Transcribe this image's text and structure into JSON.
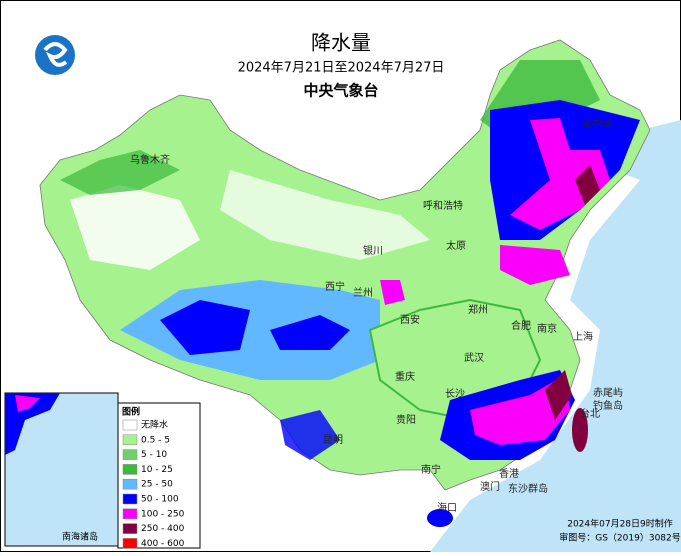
{
  "header": {
    "title": "降水量",
    "period": "2024年7月21日至2024年7月27日",
    "agency": "中央气象台"
  },
  "legend": {
    "title": "图例",
    "items": [
      {
        "label": "无降水",
        "color": "#ffffff"
      },
      {
        "label": "0.5 - 5",
        "color": "#a6f28f"
      },
      {
        "label": "5 - 10",
        "color": "#6fd06a"
      },
      {
        "label": "10 - 25",
        "color": "#3dba3d"
      },
      {
        "label": "25 - 50",
        "color": "#61b8ff"
      },
      {
        "label": "50 - 100",
        "color": "#0000ff"
      },
      {
        "label": "100 - 250",
        "color": "#fa00fa"
      },
      {
        "label": "250 - 400",
        "color": "#800040"
      },
      {
        "label": "400 - 600",
        "color": "#ff0000"
      }
    ]
  },
  "cities": [
    "乌鲁木齐",
    "哈尔滨",
    "呼和浩特",
    "银川",
    "太原",
    "西宁",
    "兰州",
    "西安",
    "郑州",
    "合肥",
    "南京",
    "上海",
    "武汉",
    "重庆",
    "长沙",
    "贵阳",
    "昆明",
    "南宁",
    "香港",
    "澳门",
    "海口",
    "台北",
    "东沙群岛",
    "赤尾屿",
    "钓鱼岛"
  ],
  "inset": {
    "label": "南海诸岛"
  },
  "footer": {
    "made": "2024年07月28日9时制作",
    "approval": "审图号：GS（2019）3082号"
  }
}
